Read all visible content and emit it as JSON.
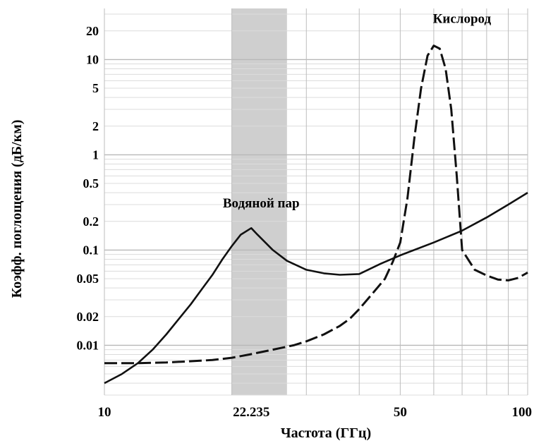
{
  "chart_data": {
    "type": "line",
    "xlabel": "Частота (ГГц)",
    "ylabel": "Коэфф. поглощения (дБ/км)",
    "x_scale": "log",
    "y_scale": "log",
    "xlim": [
      10,
      100
    ],
    "ylim": [
      0.003,
      30
    ],
    "grid": true,
    "x_ticks": [
      {
        "value": 10,
        "label": "10"
      },
      {
        "value": 22.235,
        "label": "22.235"
      },
      {
        "value": 50,
        "label": "50"
      },
      {
        "value": 100,
        "label": "100"
      }
    ],
    "y_ticks": [
      {
        "value": 20,
        "label": "20"
      },
      {
        "value": 10,
        "label": "10"
      },
      {
        "value": 5,
        "label": "5"
      },
      {
        "value": 2,
        "label": "2"
      },
      {
        "value": 1,
        "label": "1"
      },
      {
        "value": 0.5,
        "label": "0.5"
      },
      {
        "value": 0.2,
        "label": "0.2"
      },
      {
        "value": 0.1,
        "label": "0.1"
      },
      {
        "value": 0.05,
        "label": "0.05"
      },
      {
        "value": 0.02,
        "label": "0.02"
      },
      {
        "value": 0.01,
        "label": "0.01"
      }
    ],
    "highlight_band": {
      "x_from": 20,
      "x_to": 27,
      "color": "#cfcfcf"
    },
    "annotations": [
      {
        "text": "Водяной пар",
        "x": 22.235,
        "y": 0.28
      },
      {
        "text": "Кислород",
        "x": 60,
        "y": 25
      }
    ],
    "series": [
      {
        "name": "Водяной пар",
        "style": "solid",
        "color": "#111111",
        "x": [
          10,
          11,
          12,
          13,
          14,
          15,
          16,
          17,
          18,
          19,
          20,
          21,
          22.235,
          23,
          24,
          25,
          27,
          30,
          33,
          36,
          40,
          45,
          50,
          60,
          70,
          80,
          90,
          100
        ],
        "y": [
          0.004,
          0.005,
          0.0065,
          0.009,
          0.013,
          0.019,
          0.027,
          0.039,
          0.055,
          0.08,
          0.11,
          0.145,
          0.17,
          0.145,
          0.12,
          0.1,
          0.077,
          0.062,
          0.057,
          0.055,
          0.056,
          0.072,
          0.088,
          0.12,
          0.16,
          0.22,
          0.3,
          0.4
        ]
      },
      {
        "name": "Кислород",
        "style": "dashed",
        "color": "#111111",
        "x": [
          10,
          12,
          14,
          16,
          18,
          20,
          22,
          25,
          28,
          30,
          33,
          36,
          38,
          40,
          43,
          46,
          48,
          50,
          52,
          54,
          56,
          58,
          60,
          62,
          64,
          66,
          68,
          70,
          75,
          80,
          85,
          90,
          95,
          100
        ],
        "y": [
          0.0065,
          0.0065,
          0.0066,
          0.0068,
          0.007,
          0.0074,
          0.008,
          0.009,
          0.01,
          0.011,
          0.013,
          0.016,
          0.019,
          0.024,
          0.035,
          0.05,
          0.075,
          0.12,
          0.35,
          1.5,
          5,
          11,
          14,
          13,
          8,
          3,
          0.6,
          0.1,
          0.062,
          0.054,
          0.049,
          0.048,
          0.051,
          0.058
        ]
      }
    ]
  }
}
